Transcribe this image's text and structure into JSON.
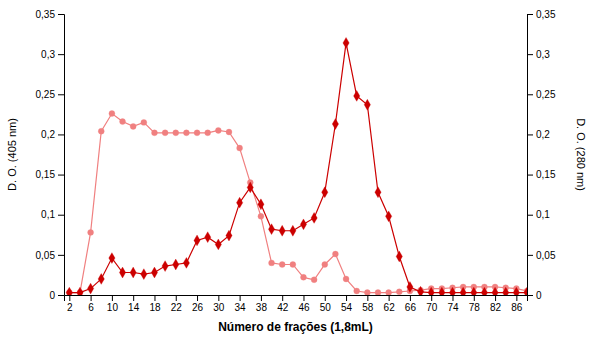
{
  "chart_data": {
    "type": "line",
    "xlabel": "Número de frações (1,8mL)",
    "ylabel": "D. O. (405 nm)",
    "y2label": "D. O. (280 nm)",
    "x": [
      2,
      4,
      6,
      8,
      10,
      12,
      14,
      16,
      18,
      20,
      22,
      24,
      26,
      28,
      30,
      32,
      34,
      36,
      38,
      40,
      42,
      44,
      46,
      48,
      50,
      52,
      54,
      56,
      58,
      60,
      62,
      64,
      66,
      68,
      70,
      72,
      74,
      76,
      78,
      80,
      82,
      84,
      86,
      88
    ],
    "series": [
      {
        "color": "#F08080",
        "marker": "circle",
        "values": [
          0.003,
          0.003,
          0.078,
          0.204,
          0.226,
          0.216,
          0.21,
          0.215,
          0.202,
          0.202,
          0.202,
          0.202,
          0.202,
          0.202,
          0.205,
          0.203,
          0.183,
          0.14,
          0.098,
          0.04,
          0.038,
          0.038,
          0.022,
          0.019,
          0.038,
          0.051,
          0.02,
          0.005,
          0.003,
          0.003,
          0.003,
          0.004,
          0.005,
          0.006,
          0.008,
          0.008,
          0.009,
          0.01,
          0.01,
          0.01,
          0.01,
          0.009,
          0.008,
          0.005
        ]
      },
      {
        "color": "#CC0000",
        "marker": "diamond",
        "values": [
          0.003,
          0.003,
          0.008,
          0.02,
          0.046,
          0.028,
          0.028,
          0.026,
          0.028,
          0.036,
          0.038,
          0.04,
          0.068,
          0.072,
          0.063,
          0.074,
          0.115,
          0.134,
          0.113,
          0.082,
          0.08,
          0.08,
          0.088,
          0.096,
          0.128,
          0.213,
          0.314,
          0.248,
          0.237,
          0.128,
          0.098,
          0.048,
          0.01,
          0.004,
          0.003,
          0.003,
          0.003,
          0.003,
          0.003,
          0.003,
          0.003,
          0.003,
          0.003,
          0.003
        ]
      }
    ],
    "xlim": [
      1,
      88
    ],
    "xticks": [
      2,
      6,
      10,
      14,
      18,
      22,
      26,
      30,
      34,
      38,
      42,
      46,
      50,
      54,
      58,
      62,
      66,
      70,
      74,
      78,
      82,
      86
    ],
    "ylim": [
      0,
      0.35
    ],
    "yticks": [
      0,
      {
        "value": 0.05,
        "label": "0,05"
      },
      {
        "value": 0.1,
        "label": "0,1"
      },
      {
        "value": 0.15,
        "label": "0,15"
      },
      {
        "value": 0.2,
        "label": "0,2"
      },
      {
        "value": 0.25,
        "label": "0,25"
      },
      {
        "value": 0.3,
        "label": "0,3"
      },
      {
        "value": 0.35,
        "label": "0,35"
      }
    ],
    "y2lim": [
      0,
      0.35
    ],
    "y2ticks": [
      0,
      {
        "value": 0.05,
        "label": "0,05"
      },
      {
        "value": 0.1,
        "label": "0,1"
      },
      {
        "value": 0.15,
        "label": "0,15"
      },
      {
        "value": 0.2,
        "label": "0,2"
      },
      {
        "value": 0.25,
        "label": "0,25"
      },
      {
        "value": 0.3,
        "label": "0,3"
      },
      {
        "value": 0.35,
        "label": "0,35"
      }
    ],
    "grid": false
  }
}
